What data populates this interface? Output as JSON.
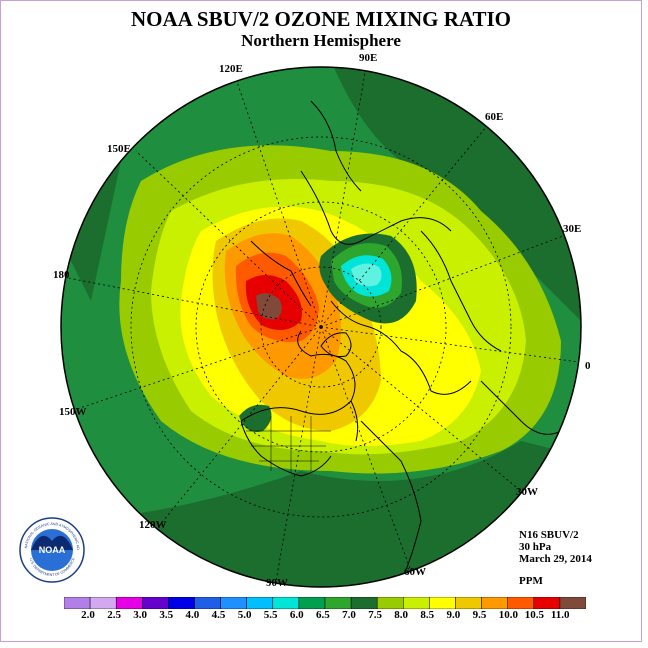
{
  "header": {
    "title": "NOAA SBUV/2 OZONE MIXING RATIO",
    "subtitle": "Northern Hemisphere"
  },
  "longitude_labels": [
    "120E",
    "90E",
    "60E",
    "150E",
    "30E",
    "180",
    "0",
    "150W",
    "30W",
    "120W",
    "90W",
    "60W"
  ],
  "info": {
    "instrument": "N16 SBUV/2",
    "level": "30 hPa",
    "date": "March 29, 2014",
    "units": "PPM"
  },
  "colorbar": {
    "labels": [
      "2.0",
      "2.5",
      "3.0",
      "3.5",
      "4.0",
      "4.5",
      "5.0",
      "5.5",
      "6.0",
      "6.5",
      "7.0",
      "7.5",
      "8.0",
      "8.5",
      "9.0",
      "9.5",
      "10.0",
      "10.5",
      "11.0"
    ],
    "colors": [
      "#b27fe6",
      "#d4a8f0",
      "#e600e6",
      "#6600cc",
      "#0000e6",
      "#1f5fe6",
      "#1e90ff",
      "#00bfff",
      "#00e5d8",
      "#00a050",
      "#2ea62e",
      "#1b6e2e",
      "#99cc00",
      "#c8f000",
      "#ffff00",
      "#f0c800",
      "#ff9900",
      "#ff5a00",
      "#e60000",
      "#7f4a3a"
    ]
  },
  "logo": {
    "text": "NOAA",
    "ring_text": "NATIONAL OCEANIC AND ATMOSPHERIC ADMINISTRATION",
    "ring_bottom": "U.S. DEPARTMENT OF COMMERCE"
  },
  "map": {
    "projection": "polar-stereographic-north",
    "variable": "ozone mixing ratio",
    "features": [
      {
        "name": "maximum",
        "range": "10.5-11.0",
        "region": "eastern Siberia / Bering Sea"
      },
      {
        "name": "minimum",
        "range": "5.5-6.0",
        "region": "Barents Sea / Scandinavia"
      },
      {
        "name": "local-minimum",
        "range": "6.5-7.0",
        "region": "western North America"
      }
    ]
  }
}
